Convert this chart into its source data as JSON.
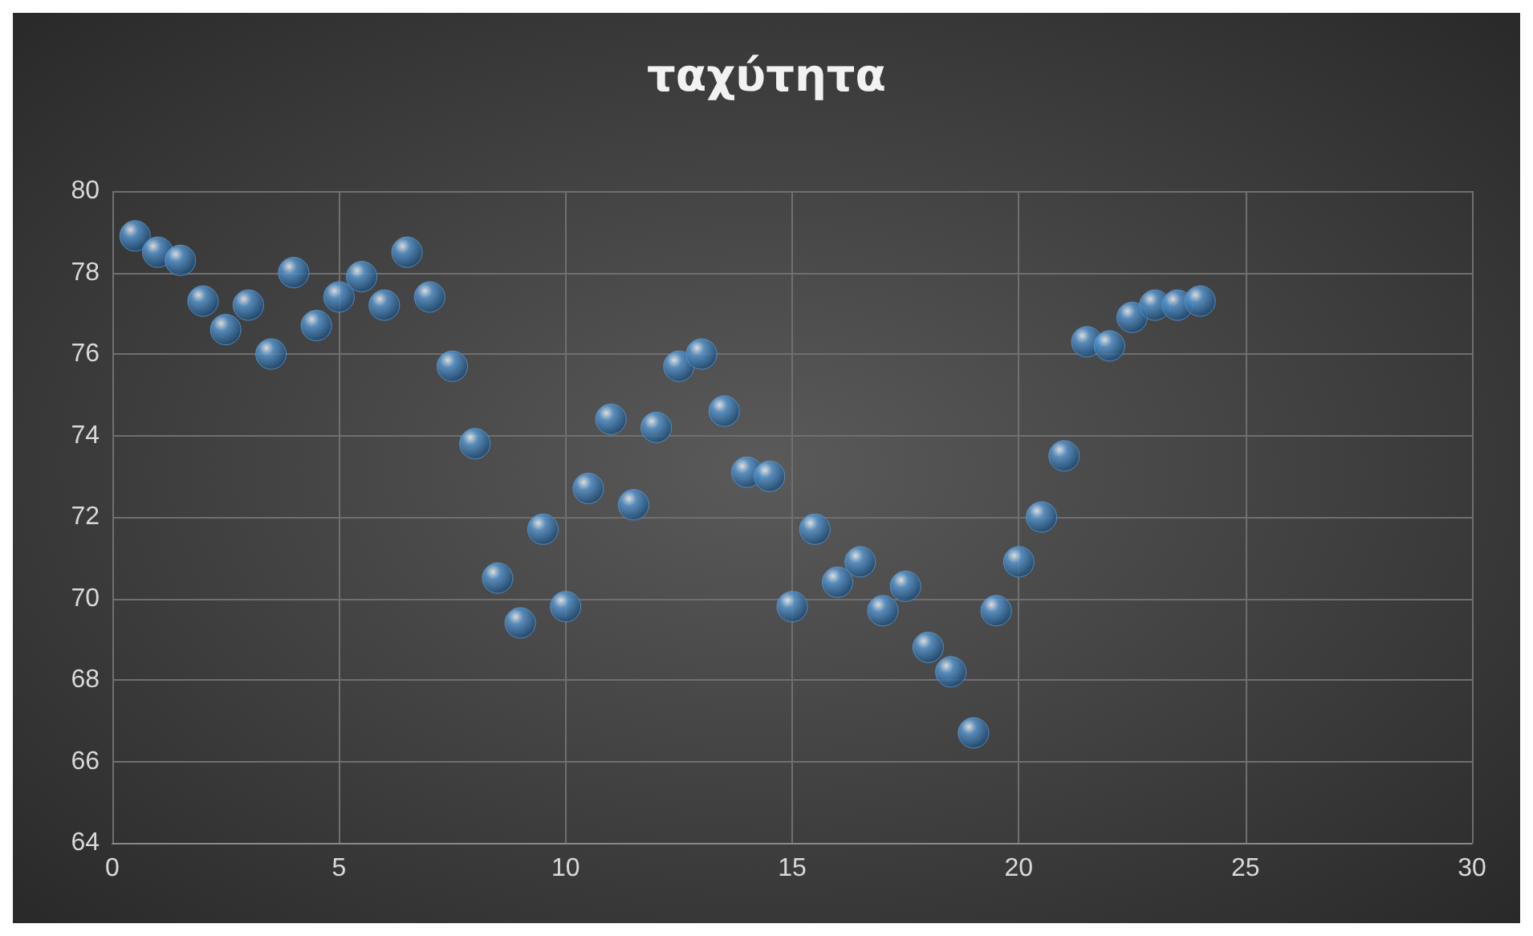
{
  "chart_data": {
    "type": "scatter",
    "title": "ταχύτητα",
    "x": [
      0.5,
      1,
      1.5,
      2,
      2.5,
      3,
      3.5,
      4,
      4.5,
      5,
      5.5,
      6,
      6.5,
      7,
      7.5,
      8,
      8.5,
      9,
      9.5,
      10,
      10.5,
      11,
      11.5,
      12,
      12.5,
      13,
      13.5,
      14,
      14.5,
      15,
      15.5,
      16,
      16.5,
      17,
      17.5,
      18,
      18.5,
      19,
      19.5,
      20,
      20.5,
      21,
      21.5,
      22,
      22.5,
      23,
      23.5,
      24
    ],
    "series": [
      {
        "color": "#5b9bd5",
        "values": [
          78.9,
          78.5,
          78.3,
          77.3,
          76.6,
          77.2,
          76.0,
          78.0,
          76.7,
          77.4,
          77.9,
          77.2,
          78.5,
          77.4,
          75.7,
          73.8,
          70.5,
          69.4,
          71.7,
          69.8,
          72.7,
          74.4,
          72.3,
          74.2,
          75.7,
          76.0,
          74.6,
          73.1,
          73.0,
          69.8,
          71.7,
          70.4,
          70.9,
          69.7,
          70.3,
          68.8,
          68.2,
          66.7,
          69.7,
          70.9,
          72.0,
          73.5,
          76.3,
          76.2,
          76.9,
          77.2,
          77.2,
          77.3
        ]
      }
    ],
    "xlim": [
      0,
      30
    ],
    "xticks": [
      0,
      5,
      10,
      15,
      20,
      25,
      30
    ],
    "ylim": [
      64,
      80
    ],
    "yticks": [
      64,
      66,
      68,
      70,
      72,
      74,
      76,
      78,
      80
    ],
    "grid": true,
    "marker": "circle"
  }
}
